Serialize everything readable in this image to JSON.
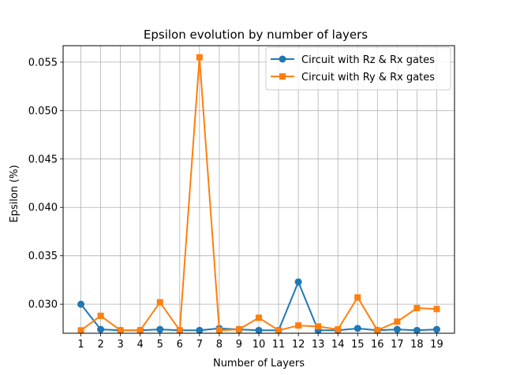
{
  "chart_data": {
    "type": "line",
    "title": "Epsilon evolution by number of layers",
    "xlabel": "Number of Layers",
    "ylabel": "Epsilon (%)",
    "x": [
      1,
      2,
      3,
      4,
      5,
      6,
      7,
      8,
      9,
      10,
      11,
      12,
      13,
      14,
      15,
      16,
      17,
      18,
      19
    ],
    "xlim": [
      0.1,
      19.9
    ],
    "ylim": [
      0.027,
      0.0567
    ],
    "yticks": [
      0.03,
      0.035,
      0.04,
      0.045,
      0.05,
      0.055
    ],
    "ytick_labels": [
      "0.030",
      "0.035",
      "0.040",
      "0.045",
      "0.050",
      "0.055"
    ],
    "grid": true,
    "legend_position": "top-right",
    "series": [
      {
        "name": "Circuit with Rz & Rx gates",
        "color": "#1f77b4",
        "marker": "circle",
        "values": [
          0.03,
          0.0274,
          0.0273,
          0.0273,
          0.0274,
          0.0273,
          0.0273,
          0.0275,
          0.0274,
          0.0273,
          0.0273,
          0.0323,
          0.0273,
          0.0273,
          0.0275,
          0.0273,
          0.0274,
          0.0273,
          0.0274
        ]
      },
      {
        "name": "Circuit with Ry & Rx gates",
        "color": "#ff7f0e",
        "marker": "square",
        "values": [
          0.0273,
          0.0288,
          0.0273,
          0.0273,
          0.0302,
          0.0273,
          0.0555,
          0.0273,
          0.0274,
          0.0286,
          0.0273,
          0.0278,
          0.0277,
          0.0274,
          0.0307,
          0.0273,
          0.0282,
          0.0296,
          0.0295
        ]
      }
    ]
  }
}
